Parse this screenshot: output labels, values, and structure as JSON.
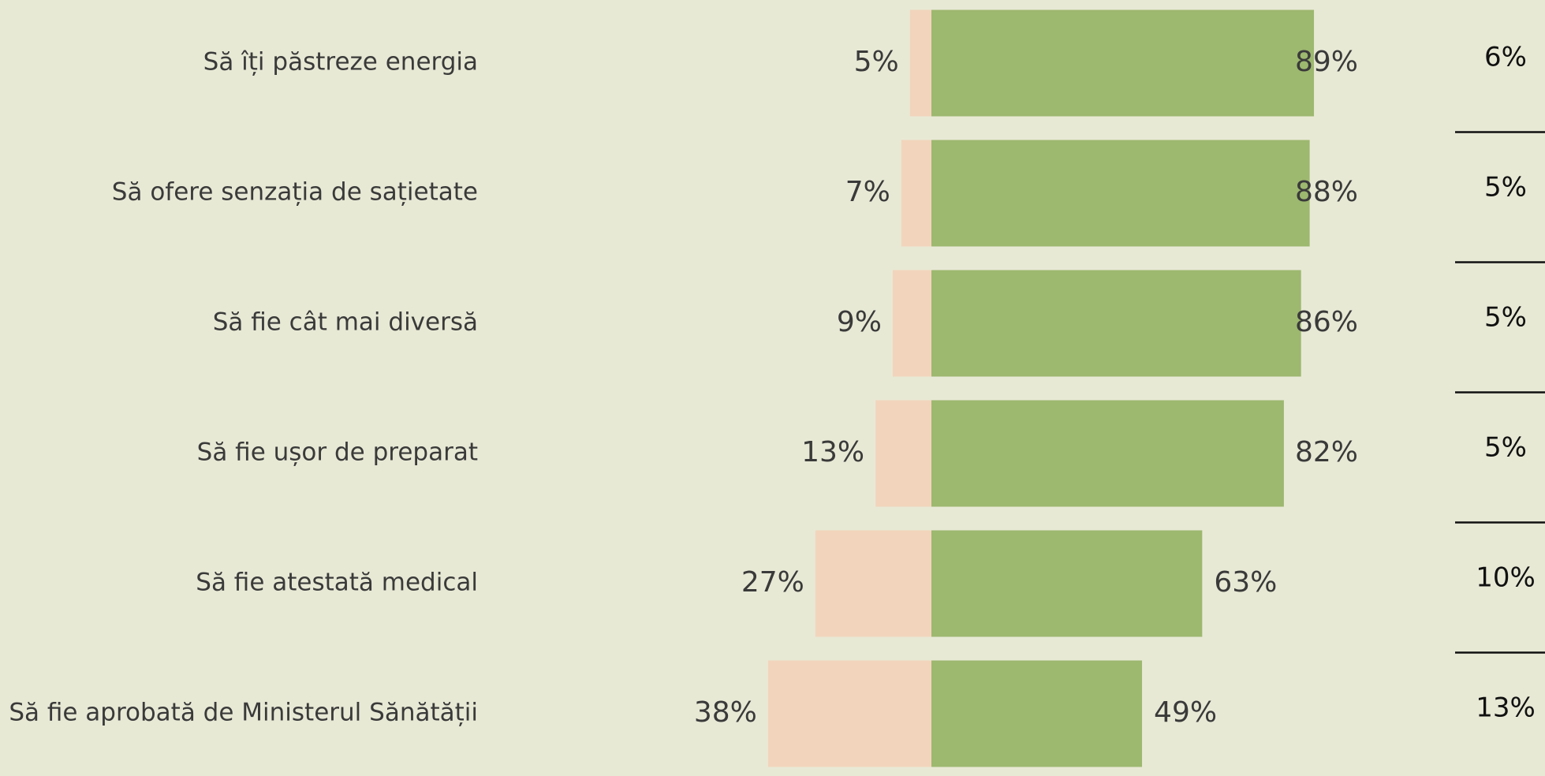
{
  "chart_data": {
    "type": "bar",
    "categories": [
      "Să îți păstreze energia",
      "Să ofere senzația de sațietate",
      "Să fie cât mai diversă",
      "Să fie ușor de preparat",
      "Să fie atestată medical",
      "Să fie aprobată de Ministerul Sănătății"
    ],
    "series": [
      {
        "color": "#f2d4bc",
        "values": [
          5,
          7,
          9,
          13,
          27,
          38
        ],
        "value_labels": [
          "5%",
          "7%",
          "9%",
          "13%",
          "27%",
          "38%"
        ]
      },
      {
        "color": "#9db86f",
        "values": [
          89,
          88,
          86,
          82,
          63,
          49
        ],
        "value_labels": [
          "89%",
          "88%",
          "86%",
          "82%",
          "63%",
          "49%"
        ]
      },
      {
        "color": "#111111",
        "values": [
          6,
          5,
          5,
          5,
          10,
          13
        ],
        "value_labels": [
          "6%",
          "5%",
          "5%",
          "5%",
          "10%",
          "13%"
        ]
      }
    ]
  }
}
